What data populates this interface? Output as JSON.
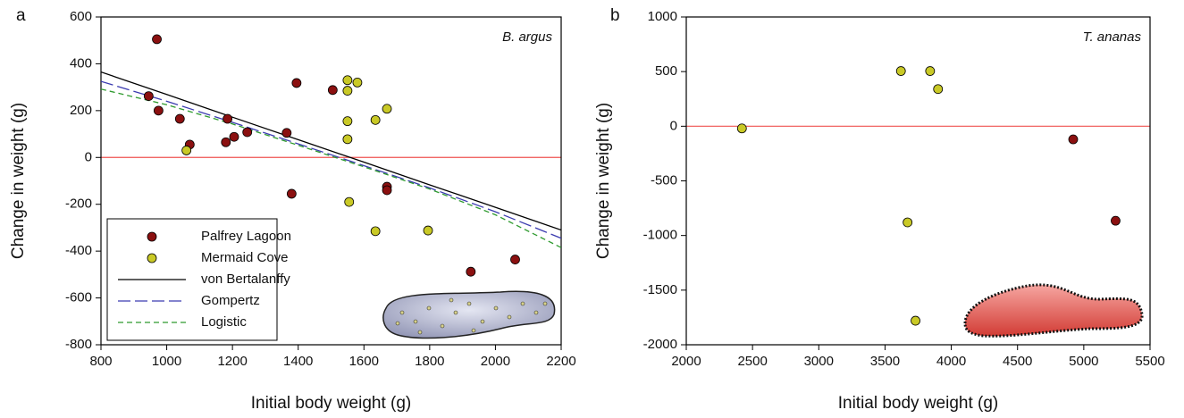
{
  "chart_data": [
    {
      "type": "scatter",
      "panel_label": "a",
      "annotation": "B. argus",
      "x_label": "Initial body weight (g)",
      "y_label": "Change in weight (g)",
      "xlim": [
        800,
        2200
      ],
      "ylim": [
        -800,
        600
      ],
      "xticks": [
        800,
        1000,
        1200,
        1400,
        1600,
        1800,
        2000,
        2200
      ],
      "yticks": [
        -800,
        -600,
        -400,
        -200,
        0,
        200,
        400,
        600
      ],
      "reference_y": 0,
      "reference_color": "#ef5350",
      "legend": "lower left",
      "series": [
        {
          "name": "Palfrey Lagoon",
          "kind": "points",
          "color": "#8b1010",
          "x": [
            970,
            945,
            975,
            1040,
            1070,
            1180,
            1185,
            1205,
            1245,
            1365,
            1395,
            1380,
            1505,
            1670,
            1670,
            1925,
            2060
          ],
          "values": [
            505,
            262,
            200,
            165,
            55,
            65,
            165,
            88,
            108,
            105,
            318,
            -155,
            288,
            -125,
            -140,
            -488,
            -436
          ]
        },
        {
          "name": "Mermaid Cove",
          "kind": "points",
          "color": "#c9c926",
          "x": [
            1060,
            1550,
            1550,
            1580,
            1550,
            1550,
            1555,
            1635,
            1670,
            1635,
            1795
          ],
          "values": [
            30,
            330,
            285,
            320,
            155,
            78,
            -190,
            160,
            208,
            -315,
            -312
          ]
        },
        {
          "name": "von Bertalanffy",
          "kind": "line",
          "dash": "solid",
          "color": "#000000",
          "x": [
            800,
            1000,
            1200,
            1400,
            1600,
            1800,
            2000,
            2200
          ],
          "values": [
            365,
            269,
            172,
            76,
            -20,
            -117,
            -213,
            -310
          ]
        },
        {
          "name": "Gompertz",
          "kind": "line",
          "dash": "long",
          "color": "#3b3bb0",
          "x": [
            800,
            1000,
            1200,
            1400,
            1600,
            1800,
            2000,
            2200
          ],
          "values": [
            325,
            240,
            150,
            58,
            -35,
            -130,
            -232,
            -345
          ]
        },
        {
          "name": "Logistic",
          "kind": "line",
          "dash": "short",
          "color": "#2e9a2e",
          "x": [
            800,
            1000,
            1200,
            1400,
            1600,
            1800,
            2000,
            2200
          ],
          "values": [
            292,
            225,
            143,
            52,
            -40,
            -135,
            -245,
            -385
          ]
        }
      ]
    },
    {
      "type": "scatter",
      "panel_label": "b",
      "annotation": "T. ananas",
      "x_label": "Initial body weight (g)",
      "y_label": "Change in weight (g)",
      "xlim": [
        2000,
        5500
      ],
      "ylim": [
        -2000,
        1000
      ],
      "xticks": [
        2000,
        2500,
        3000,
        3500,
        4000,
        4500,
        5000,
        5500
      ],
      "yticks": [
        -2000,
        -1500,
        -1000,
        -500,
        0,
        500,
        1000
      ],
      "reference_y": 0,
      "reference_color": "#ef5350",
      "legend": "none",
      "series": [
        {
          "name": "Palfrey Lagoon",
          "kind": "points",
          "color": "#8b1010",
          "x": [
            4920,
            5240
          ],
          "values": [
            -120,
            -865
          ]
        },
        {
          "name": "Mermaid Cove",
          "kind": "points",
          "color": "#c9c926",
          "x": [
            2420,
            3620,
            3840,
            3900,
            3670,
            3730
          ],
          "values": [
            -20,
            505,
            505,
            340,
            -880,
            -1780
          ]
        }
      ]
    }
  ]
}
